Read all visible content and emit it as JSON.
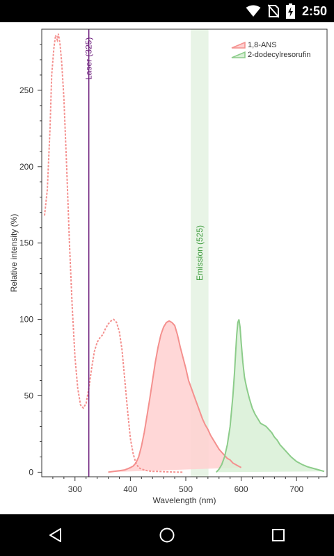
{
  "status_bar": {
    "time": "2:50",
    "icons": [
      "wifi-icon",
      "no-sim-icon",
      "battery-charging-icon"
    ]
  },
  "nav_bar": {
    "icons": [
      "back-icon",
      "home-icon",
      "recents-icon"
    ]
  },
  "colors": {
    "ans": "#f4908e",
    "ans_fill": "#ffd0d0",
    "resorufin": "#8ccc8a",
    "resorufin_fill": "#d8f0d6",
    "laser": "#6a1a7a",
    "emission_band": "#e8f4e6",
    "emission_text": "#3a9a3a"
  },
  "chart_data": {
    "type": "area",
    "xlabel": "Wavelength (nm)",
    "ylabel": "Relative intensity (%)",
    "xlim": [
      240,
      755
    ],
    "ylim": [
      -3,
      290
    ],
    "x_ticks": [
      300,
      400,
      500,
      600,
      700
    ],
    "y_ticks": [
      0,
      50,
      100,
      150,
      200,
      250
    ],
    "legend_position": "top-right",
    "series": [
      {
        "name": "1,8-ANS",
        "color_key": "ans",
        "excitation": {
          "x": [
            245,
            250,
            255,
            258,
            262,
            265,
            268,
            270,
            273,
            276,
            280,
            285,
            290,
            295,
            300,
            305,
            310,
            315,
            320,
            325,
            330,
            335,
            340,
            345,
            350,
            355,
            360,
            365,
            370,
            375,
            380,
            385,
            390,
            395,
            400,
            405,
            410,
            415,
            420,
            430,
            440,
            450,
            460,
            470,
            480,
            490,
            495
          ],
          "y": [
            168,
            185,
            225,
            260,
            278,
            286,
            283,
            287,
            280,
            268,
            245,
            200,
            150,
            108,
            75,
            55,
            44,
            42,
            45,
            55,
            68,
            79,
            85,
            88,
            90,
            94,
            97,
            99,
            100,
            98,
            92,
            80,
            60,
            40,
            22,
            12,
            6,
            3,
            2,
            1,
            0.5,
            0.5,
            0.3,
            0.2,
            0.1,
            0,
            0
          ]
        },
        "emission": {
          "x": [
            360,
            370,
            380,
            390,
            400,
            405,
            410,
            415,
            420,
            425,
            430,
            435,
            440,
            445,
            450,
            455,
            460,
            465,
            470,
            475,
            480,
            485,
            490,
            495,
            500,
            505,
            510,
            515,
            520,
            525,
            530,
            535,
            540,
            545,
            550,
            555,
            560,
            565,
            570,
            575,
            580,
            585,
            590,
            595,
            600
          ],
          "y": [
            0,
            0.5,
            1,
            1.5,
            3,
            4,
            6,
            10,
            17,
            26,
            37,
            48,
            60,
            72,
            82,
            90,
            95,
            98,
            99,
            98,
            96,
            90,
            82,
            75,
            68,
            60,
            55,
            50,
            45,
            40,
            35,
            31,
            28,
            24,
            21,
            18,
            15,
            13,
            11,
            9,
            8,
            6,
            5,
            4,
            3
          ]
        }
      },
      {
        "name": "2-dodecylresorufin",
        "color_key": "resorufin",
        "emission": {
          "x": [
            555,
            560,
            565,
            570,
            575,
            580,
            585,
            588,
            590,
            592,
            594,
            596,
            598,
            600,
            603,
            606,
            610,
            615,
            620,
            625,
            630,
            635,
            640,
            645,
            650,
            655,
            660,
            665,
            670,
            680,
            690,
            700,
            710,
            720,
            730,
            740,
            750
          ],
          "y": [
            0,
            2,
            5,
            10,
            18,
            30,
            50,
            65,
            78,
            90,
            98,
            100,
            95,
            85,
            72,
            62,
            55,
            48,
            42,
            38,
            35,
            32,
            31,
            30,
            28,
            26,
            23,
            21,
            18,
            14,
            10,
            7,
            5,
            3.5,
            2.5,
            1.5,
            0.5
          ]
        }
      }
    ],
    "annotations": {
      "laser": {
        "x": 325,
        "label": "Laser (325)"
      },
      "emission": {
        "x": 525,
        "label": "Emission (525)",
        "band": [
          509,
          541
        ]
      }
    }
  }
}
